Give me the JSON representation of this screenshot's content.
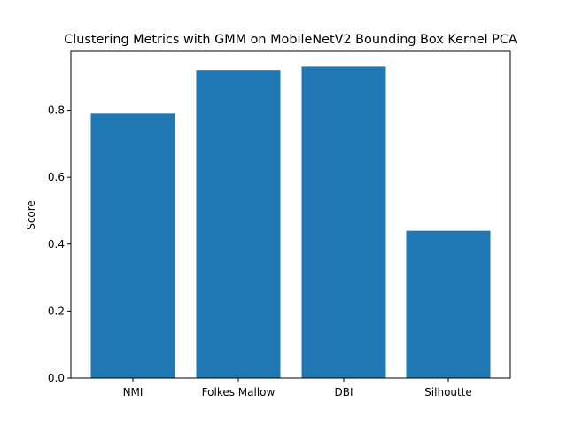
{
  "chart_data": {
    "type": "bar",
    "title": "Clustering Metrics with GMM on MobileNetV2 Bounding Box Kernel PCA",
    "xlabel": "",
    "ylabel": "Score",
    "categories": [
      "NMI",
      "Folkes Mallow",
      "DBI",
      "Silhoutte"
    ],
    "values": [
      0.79,
      0.92,
      0.93,
      0.44
    ],
    "ylim": [
      0,
      0.976
    ],
    "yticks": [
      0.0,
      0.2,
      0.4,
      0.6,
      0.8
    ],
    "ytick_labels": [
      "0.0",
      "0.2",
      "0.4",
      "0.6",
      "0.8"
    ],
    "bar_color": "#1f77b4",
    "grid": false,
    "legend": "none"
  }
}
